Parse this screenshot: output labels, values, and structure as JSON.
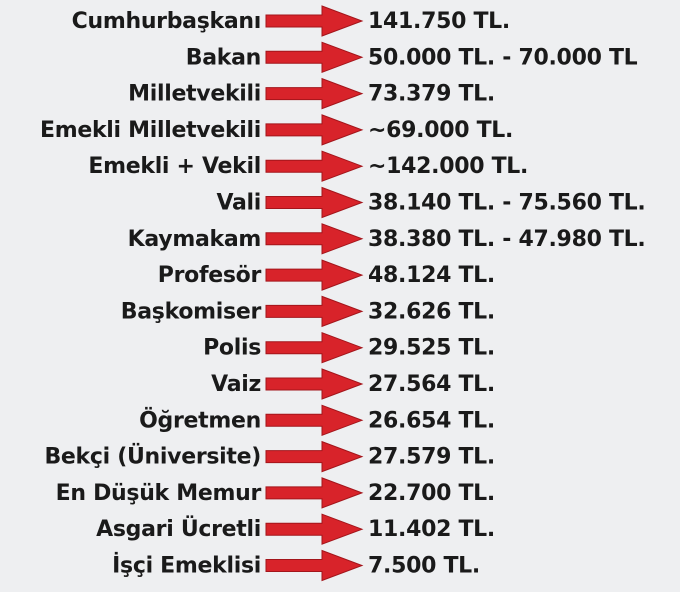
{
  "rows": [
    {
      "label": "Cumhurbaşkanı",
      "value": "141.750 TL."
    },
    {
      "label": "Bakan",
      "value": "50.000 TL. - 70.000 TL"
    },
    {
      "label": "Milletvekili",
      "value": "73.379 TL."
    },
    {
      "label": "Emekli Milletvekili",
      "value": "~69.000 TL."
    },
    {
      "label": "Emekli + Vekil",
      "value": "~142.000 TL."
    },
    {
      "label": "Vali",
      "value": "38.140 TL. - 75.560 TL."
    },
    {
      "label": "Kaymakam",
      "value": "38.380 TL. - 47.980 TL."
    },
    {
      "label": "Profesör",
      "value": "48.124 TL."
    },
    {
      "label": "Başkomiser",
      "value": "32.626 TL."
    },
    {
      "label": "Polis",
      "value": "29.525 TL."
    },
    {
      "label": "Vaiz",
      "value": "27.564 TL."
    },
    {
      "label": "Öğretmen",
      "value": "26.654 TL."
    },
    {
      "label": "Bekçi (Üniversite)",
      "value": "27.579 TL."
    },
    {
      "label": "En Düşük Memur",
      "value": "22.700 TL."
    },
    {
      "label": "Asgari Ücretli",
      "value": "11.402 TL."
    },
    {
      "label": "İşçi Emeklisi",
      "value": "7.500 TL."
    }
  ]
}
